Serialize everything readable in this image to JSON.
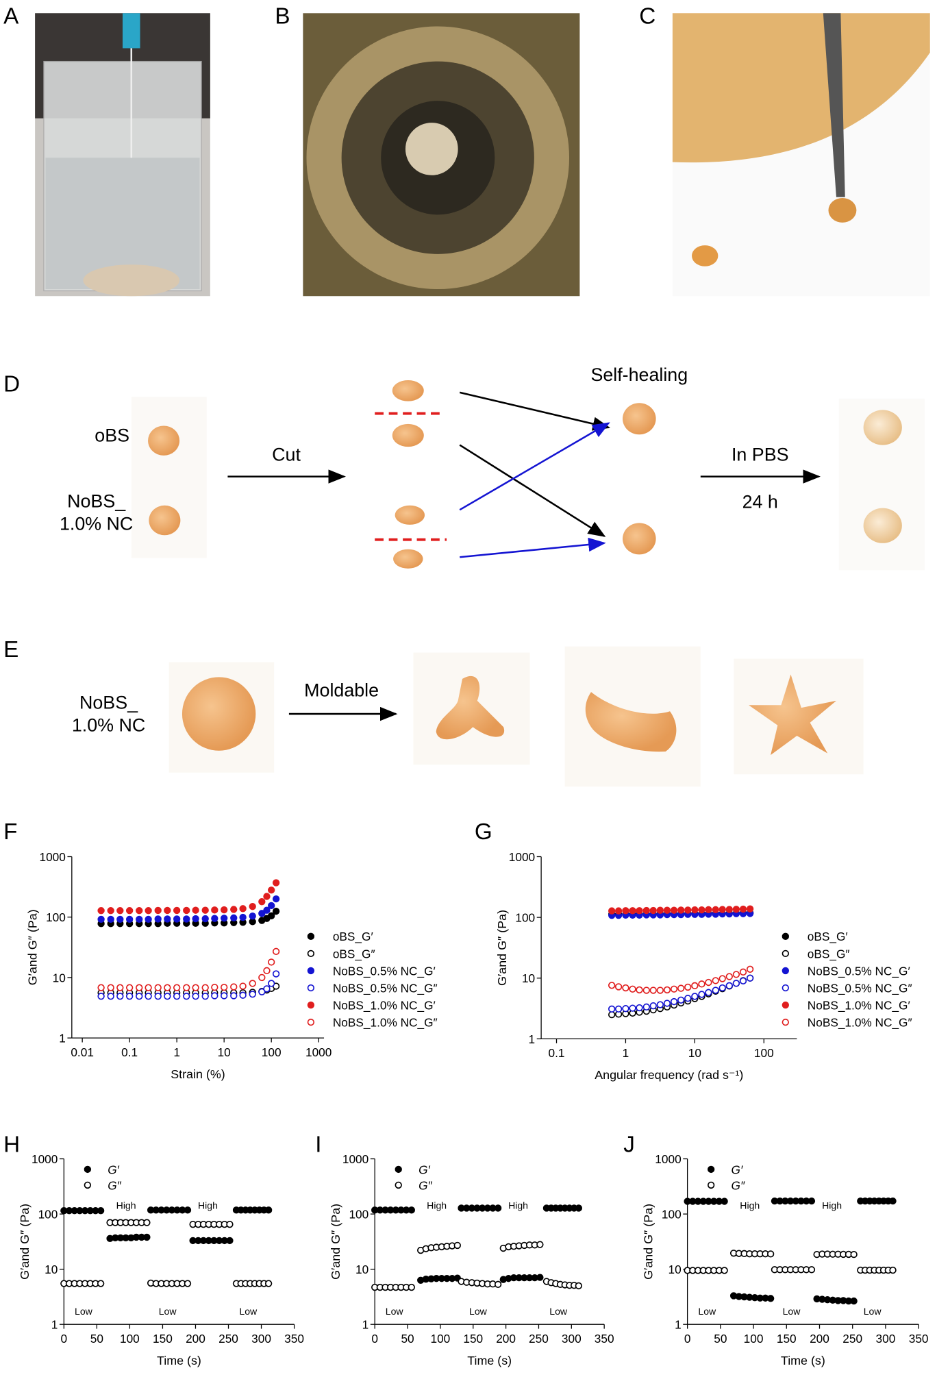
{
  "panel_labels": [
    "A",
    "B",
    "C",
    "D",
    "E",
    "F",
    "G",
    "H",
    "I",
    "J"
  ],
  "panel_d": {
    "samples": [
      "oBS",
      "NoBS_",
      "1.0% NC"
    ],
    "cut": "Cut",
    "self_healing": "Self-healing",
    "condition": "In PBS",
    "duration": "24 h"
  },
  "panel_e": {
    "sample": [
      "NoBS_",
      "1.0% NC"
    ],
    "action": "Moldable"
  },
  "chart_data": [
    {
      "type": "scatter",
      "xlabel": "Strain (%)",
      "ylabel": "G′and G″ (Pa)",
      "xscale": "log",
      "yscale": "log",
      "xlim": [
        0.006,
        1300
      ],
      "ylim": [
        1,
        1000
      ],
      "xticks": [
        0.01,
        0.1,
        1,
        10,
        100,
        1000
      ],
      "yticks": [
        1,
        10,
        100,
        1000
      ],
      "legend": "right",
      "x": [
        0.025,
        0.04,
        0.063,
        0.1,
        0.16,
        0.25,
        0.4,
        0.63,
        1,
        1.6,
        2.5,
        4,
        6.3,
        10,
        16,
        25,
        40,
        63,
        80,
        100,
        126
      ],
      "series": [
        {
          "name": "oBS_G′",
          "color": "#000000",
          "filled": true,
          "values": [
            78,
            78,
            78,
            78,
            78,
            78,
            78,
            79,
            79,
            79,
            79,
            79,
            80,
            80,
            81,
            82,
            84,
            88,
            95,
            105,
            125
          ]
        },
        {
          "name": "oBS_G″",
          "color": "#000000",
          "filled": false,
          "values": [
            5.6,
            5.6,
            5.6,
            5.6,
            5.6,
            5.6,
            5.6,
            5.6,
            5.6,
            5.6,
            5.6,
            5.6,
            5.6,
            5.6,
            5.6,
            5.6,
            5.7,
            5.9,
            6.2,
            6.6,
            7.2
          ]
        },
        {
          "name": "NoBS_0.5% NC_G′",
          "color": "#1414d2",
          "filled": true,
          "values": [
            92,
            92,
            92,
            92,
            92,
            92,
            93,
            93,
            93,
            93,
            94,
            94,
            95,
            96,
            97,
            99,
            104,
            115,
            130,
            155,
            200
          ]
        },
        {
          "name": "NoBS_0.5% NC_G″",
          "color": "#1414d2",
          "filled": false,
          "values": [
            4.9,
            4.9,
            4.9,
            4.9,
            4.9,
            4.9,
            4.9,
            4.9,
            4.9,
            4.9,
            4.9,
            4.9,
            5,
            5,
            5,
            5.1,
            5.3,
            5.8,
            6.5,
            8,
            11.5
          ]
        },
        {
          "name": "NoBS_1.0% NC_G′",
          "color": "#e01e1e",
          "filled": true,
          "values": [
            128,
            128,
            128,
            128,
            128,
            128,
            129,
            129,
            129,
            129,
            130,
            130,
            131,
            132,
            134,
            138,
            150,
            180,
            220,
            280,
            370
          ]
        },
        {
          "name": "NoBS_1.0% NC_G″",
          "color": "#e01e1e",
          "filled": false,
          "values": [
            6.8,
            6.8,
            6.8,
            6.8,
            6.8,
            6.8,
            6.8,
            6.8,
            6.8,
            6.8,
            6.8,
            6.8,
            6.9,
            6.9,
            7,
            7.2,
            8,
            10,
            13,
            18,
            27
          ]
        }
      ]
    },
    {
      "type": "scatter",
      "xlabel": "Angular frequency (rad s⁻¹)",
      "ylabel": "G′and G″ (Pa)",
      "xscale": "log",
      "yscale": "log",
      "xlim": [
        0.06,
        300
      ],
      "ylim": [
        1,
        1000
      ],
      "xticks": [
        0.1,
        1,
        10,
        100
      ],
      "yticks": [
        1,
        10,
        100,
        1000
      ],
      "legend": "right",
      "x": [
        0.63,
        0.79,
        1,
        1.26,
        1.58,
        2,
        2.51,
        3.16,
        3.98,
        5.01,
        6.31,
        7.94,
        10,
        12.6,
        15.8,
        20,
        25.1,
        31.6,
        39.8,
        50.1,
        63.1
      ],
      "series": [
        {
          "name": "oBS_G′",
          "color": "#000000",
          "filled": true,
          "values": [
            112,
            112,
            112,
            113,
            113,
            113,
            113,
            114,
            114,
            114,
            114,
            115,
            115,
            115,
            116,
            116,
            116,
            117,
            117,
            118,
            118
          ]
        },
        {
          "name": "oBS_G″",
          "color": "#000000",
          "filled": false,
          "values": [
            2.5,
            2.55,
            2.6,
            2.65,
            2.75,
            2.85,
            3,
            3.15,
            3.35,
            3.6,
            3.9,
            4.2,
            4.6,
            5,
            5.5,
            6.1,
            6.7,
            7.4,
            8.2,
            9.1,
            10
          ]
        },
        {
          "name": "NoBS_0.5% NC_G′",
          "color": "#1414d2",
          "filled": true,
          "values": [
            108,
            108,
            109,
            109,
            109,
            110,
            110,
            110,
            111,
            111,
            111,
            112,
            112,
            112,
            113,
            113,
            114,
            114,
            115,
            115,
            116
          ]
        },
        {
          "name": "NoBS_0.5% NC_G″",
          "color": "#1414d2",
          "filled": false,
          "values": [
            3.1,
            3.1,
            3.15,
            3.2,
            3.25,
            3.35,
            3.5,
            3.65,
            3.85,
            4.1,
            4.35,
            4.65,
            5,
            5.4,
            5.8,
            6.3,
            6.9,
            7.5,
            8.2,
            9,
            10
          ]
        },
        {
          "name": "NoBS_1.0% NC_G′",
          "color": "#e01e1e",
          "filled": true,
          "values": [
            128,
            128,
            129,
            129,
            129,
            130,
            130,
            131,
            131,
            131,
            132,
            132,
            133,
            133,
            134,
            134,
            135,
            135,
            136,
            137,
            138
          ]
        },
        {
          "name": "NoBS_1.0% NC_G″",
          "color": "#e01e1e",
          "filled": false,
          "values": [
            7.6,
            7.2,
            6.9,
            6.6,
            6.4,
            6.3,
            6.3,
            6.3,
            6.4,
            6.6,
            6.8,
            7.1,
            7.5,
            8,
            8.5,
            9.1,
            9.8,
            10.6,
            11.5,
            12.6,
            14
          ]
        }
      ]
    },
    {
      "type": "scatter",
      "xlabel": "Time (s)",
      "ylabel": "G′and G″ (Pa)",
      "xscale": "linear",
      "yscale": "log",
      "xlim": [
        0,
        350
      ],
      "ylim": [
        1,
        1000
      ],
      "xticks": [
        0,
        50,
        100,
        150,
        200,
        250,
        300,
        350
      ],
      "yticks": [
        1,
        10,
        100,
        1000
      ],
      "legend": "upper left",
      "annotations": [
        "Low",
        "High",
        "Low",
        "High",
        "Low"
      ],
      "x": [
        0,
        8,
        16,
        24,
        32,
        40,
        48,
        56,
        70,
        78,
        86,
        94,
        102,
        110,
        118,
        126,
        132,
        140,
        148,
        156,
        164,
        172,
        180,
        188,
        196,
        204,
        212,
        220,
        228,
        236,
        244,
        252,
        262,
        269,
        276,
        283,
        290,
        297,
        304,
        311
      ],
      "series": [
        {
          "name": "G′",
          "color": "#000000",
          "filled": true,
          "values": [
            115,
            115,
            115,
            115,
            115,
            115,
            115,
            115,
            36,
            37,
            37,
            37,
            37,
            38,
            38,
            38,
            118,
            118,
            118,
            118,
            118,
            118,
            118,
            118,
            33,
            33,
            33,
            33,
            33,
            33,
            33,
            33,
            118,
            118,
            118,
            118,
            118,
            118,
            118,
            118
          ]
        },
        {
          "name": "G″",
          "color": "#000000",
          "filled": false,
          "values": [
            5.5,
            5.5,
            5.5,
            5.5,
            5.5,
            5.5,
            5.5,
            5.5,
            70,
            70,
            70,
            70,
            70,
            70,
            70,
            70,
            5.6,
            5.5,
            5.5,
            5.5,
            5.5,
            5.5,
            5.5,
            5.5,
            65,
            65,
            65,
            65,
            65,
            65,
            65,
            65,
            5.5,
            5.5,
            5.5,
            5.5,
            5.5,
            5.5,
            5.5,
            5.5
          ]
        }
      ]
    },
    {
      "type": "scatter",
      "xlabel": "Time (s)",
      "ylabel": "G′and G″ (Pa)",
      "xscale": "linear",
      "yscale": "log",
      "xlim": [
        0,
        350
      ],
      "ylim": [
        1,
        1000
      ],
      "xticks": [
        0,
        50,
        100,
        150,
        200,
        250,
        300,
        350
      ],
      "yticks": [
        1,
        10,
        100,
        1000
      ],
      "legend": "upper left",
      "annotations": [
        "Low",
        "High",
        "Low",
        "High",
        "Low"
      ],
      "x": [
        0,
        8,
        16,
        24,
        32,
        40,
        48,
        56,
        70,
        78,
        86,
        94,
        102,
        110,
        118,
        126,
        132,
        140,
        148,
        156,
        164,
        172,
        180,
        188,
        196,
        204,
        212,
        220,
        228,
        236,
        244,
        252,
        262,
        269,
        276,
        283,
        290,
        297,
        304,
        311
      ],
      "series": [
        {
          "name": "G′",
          "color": "#000000",
          "filled": true,
          "values": [
            118,
            118,
            118,
            118,
            118,
            118,
            118,
            118,
            6.3,
            6.6,
            6.7,
            6.8,
            6.8,
            6.8,
            6.8,
            6.9,
            128,
            128,
            128,
            128,
            128,
            128,
            128,
            128,
            6.5,
            6.8,
            7,
            7,
            7,
            7,
            7,
            7.1,
            128,
            128,
            128,
            128,
            128,
            128,
            128,
            128
          ]
        },
        {
          "name": "G″",
          "color": "#000000",
          "filled": false,
          "values": [
            4.7,
            4.7,
            4.7,
            4.7,
            4.7,
            4.7,
            4.7,
            4.7,
            22,
            23.5,
            24.5,
            25,
            25.5,
            26,
            26.5,
            27,
            6,
            5.8,
            5.7,
            5.6,
            5.5,
            5.4,
            5.4,
            5.3,
            24,
            25.5,
            26,
            26.5,
            27,
            27.5,
            27.5,
            28,
            6,
            5.7,
            5.5,
            5.3,
            5.2,
            5.1,
            5.1,
            5
          ]
        }
      ]
    },
    {
      "type": "scatter",
      "xlabel": "Time (s)",
      "ylabel": "G′and G″ (Pa)",
      "xscale": "linear",
      "yscale": "log",
      "xlim": [
        0,
        350
      ],
      "ylim": [
        1,
        1000
      ],
      "xticks": [
        0,
        50,
        100,
        150,
        200,
        250,
        300,
        350
      ],
      "yticks": [
        1,
        10,
        100,
        1000
      ],
      "legend": "upper left",
      "annotations": [
        "Low",
        "High",
        "Low",
        "High",
        "Low"
      ],
      "x": [
        0,
        8,
        16,
        24,
        32,
        40,
        48,
        56,
        70,
        78,
        86,
        94,
        102,
        110,
        118,
        126,
        132,
        140,
        148,
        156,
        164,
        172,
        180,
        188,
        196,
        204,
        212,
        220,
        228,
        236,
        244,
        252,
        262,
        269,
        276,
        283,
        290,
        297,
        304,
        311
      ],
      "series": [
        {
          "name": "G′",
          "color": "#000000",
          "filled": true,
          "values": [
            170,
            170,
            170,
            170,
            170,
            170,
            170,
            170,
            3.3,
            3.2,
            3.15,
            3.1,
            3.05,
            3,
            3,
            2.95,
            172,
            172,
            172,
            172,
            172,
            172,
            172,
            172,
            2.9,
            2.85,
            2.8,
            2.75,
            2.7,
            2.7,
            2.65,
            2.65,
            172,
            172,
            172,
            172,
            172,
            172,
            172,
            172
          ]
        },
        {
          "name": "G″",
          "color": "#000000",
          "filled": false,
          "values": [
            9.5,
            9.5,
            9.5,
            9.5,
            9.5,
            9.5,
            9.5,
            9.5,
            19.5,
            19.3,
            19.2,
            19,
            19,
            19,
            19,
            18.9,
            9.8,
            9.8,
            9.8,
            9.8,
            9.8,
            9.8,
            9.8,
            9.8,
            18.5,
            18.8,
            18.8,
            18.7,
            18.7,
            18.6,
            18.6,
            18.5,
            9.6,
            9.6,
            9.6,
            9.6,
            9.6,
            9.6,
            9.6,
            9.6
          ]
        }
      ]
    }
  ]
}
